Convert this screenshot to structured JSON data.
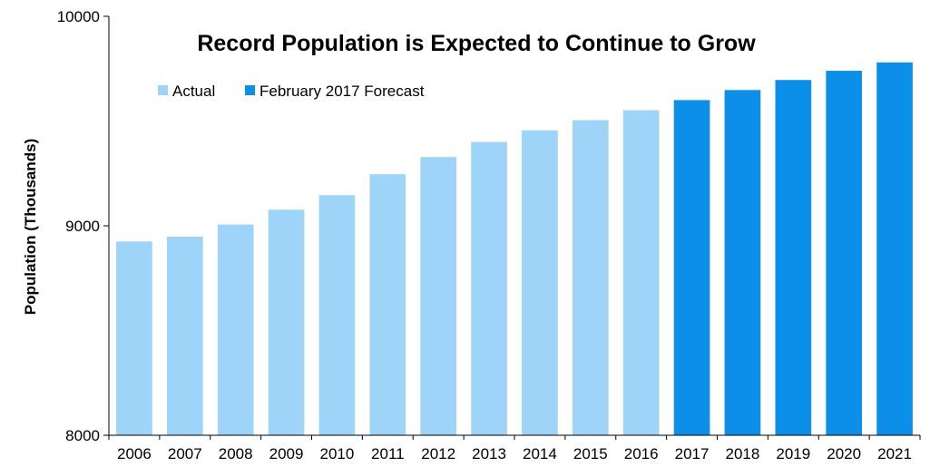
{
  "chart_data": {
    "type": "bar",
    "title": "Record Population is Expected to Continue to Grow",
    "ylabel": "Population (Thousands)",
    "xlabel": "",
    "ylim": [
      8000,
      10000
    ],
    "yticks": [
      8000,
      9000,
      10000
    ],
    "grid": false,
    "legend_placement": "top-left",
    "categories": [
      "2006",
      "2007",
      "2008",
      "2009",
      "2010",
      "2011",
      "2012",
      "2013",
      "2014",
      "2015",
      "2016",
      "2017",
      "2018",
      "2019",
      "2020",
      "2021"
    ],
    "series": [
      {
        "name": "Actual",
        "color": "#9DD4F7",
        "values": [
          8925,
          8948,
          9006,
          9077,
          9146,
          9246,
          9328,
          9400,
          9456,
          9504,
          9552,
          null,
          null,
          null,
          null,
          null
        ]
      },
      {
        "name": "February 2017 Forecast",
        "color": "#0B8FE8",
        "values": [
          null,
          null,
          null,
          null,
          null,
          null,
          null,
          null,
          null,
          null,
          null,
          9600,
          9648,
          9696,
          9740,
          9780
        ]
      }
    ]
  }
}
